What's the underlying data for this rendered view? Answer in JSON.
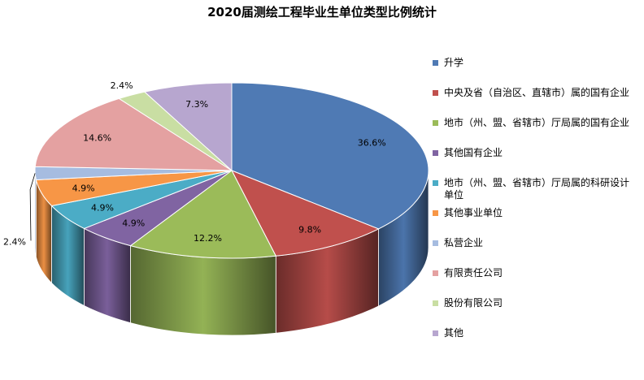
{
  "chart_data": {
    "type": "pie",
    "title": "2020届测绘工程毕业生单位类型比例统计",
    "categories": [
      "升学",
      "中央及省（自治区、直辖市）属的国有企业",
      "地市（州、盟、省辖市）厅局属的国有企业",
      "其他国有企业",
      "地市（州、盟、省辖市）厅局属的科研设计单位",
      "其他事业单位",
      "私营企业",
      "有限责任公司",
      "股份有限公司",
      "其他"
    ],
    "values": [
      36.6,
      9.8,
      12.2,
      4.9,
      4.9,
      4.9,
      2.4,
      14.6,
      2.4,
      7.3
    ],
    "data_labels": [
      "36.6%",
      "9.8%",
      "12.2%",
      "4.9%",
      "4.9%",
      "4.9%",
      "2.4%",
      "14.6%",
      "2.4%",
      "7.3%"
    ],
    "colors": [
      "#4f7ab4",
      "#c0504d",
      "#9bbb59",
      "#8064a2",
      "#4bacc6",
      "#f79646",
      "#a6bce0",
      "#e4a1a1",
      "#c9dea3",
      "#b7a6cf"
    ],
    "legend_position": "right"
  }
}
